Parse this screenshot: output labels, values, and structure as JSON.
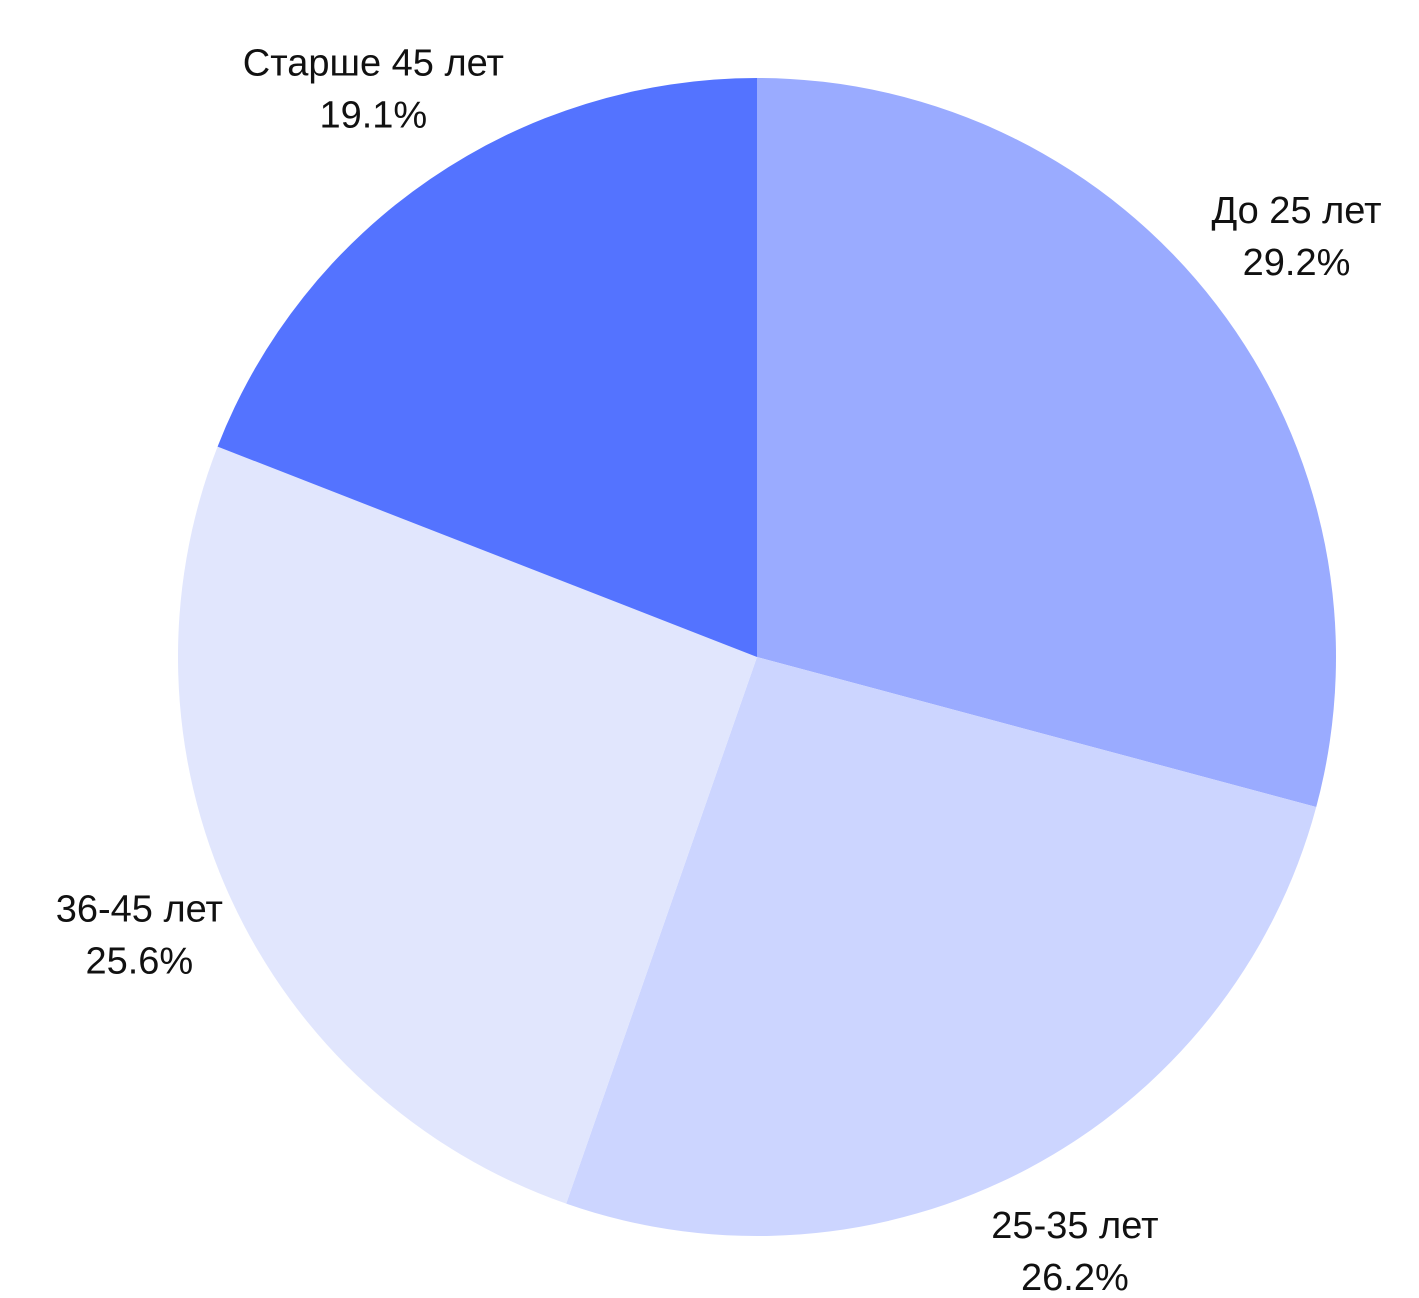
{
  "chart_data": {
    "type": "pie",
    "categories": [
      "До 25 лет",
      "25-35 лет",
      "36-45 лет",
      "Старше 45 лет"
    ],
    "values": [
      29.2,
      26.2,
      25.6,
      19.1
    ],
    "value_labels": [
      "29.2%",
      "26.2%",
      "25.6%",
      "19.1%"
    ],
    "colors": [
      "#9aabff",
      "#ccd5ff",
      "#e1e6fd",
      "#5473ff"
    ]
  }
}
